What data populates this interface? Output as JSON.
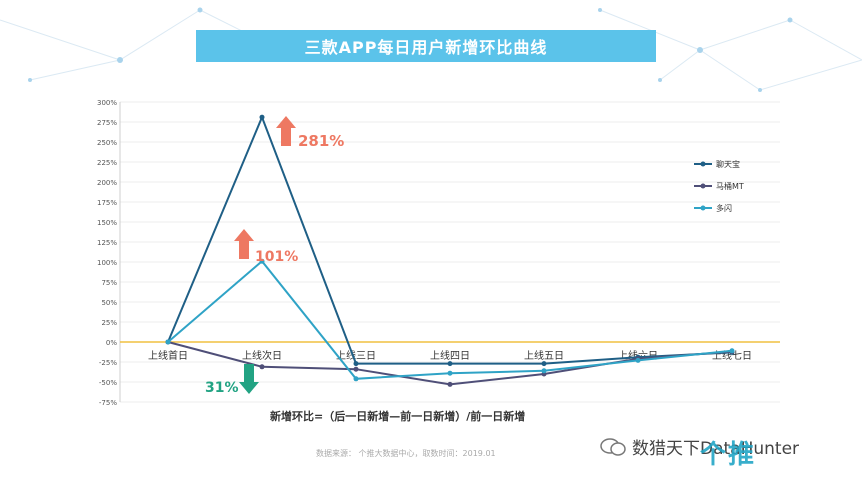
{
  "header": {
    "title": "三款APP每日用户新增环比曲线"
  },
  "footer": {
    "formula": "新增环比=（后一日新增—前一日新增）/前一日新增",
    "source": "数据来源：  个推大数据中心，取数时间：2019.01",
    "wechat": "数猎天下DataHunter",
    "brand": "个推"
  },
  "colors": {
    "title_bg": "#5bc3ea",
    "up_arrow": "#ee7862",
    "down_arrow": "#22a383",
    "zero_line": "#f0c040"
  },
  "annotations": [
    {
      "text": "281%",
      "direction": "up",
      "color": "#ee7862"
    },
    {
      "text": "101%",
      "direction": "up",
      "color": "#ee7862"
    },
    {
      "text": "31%",
      "direction": "down",
      "color": "#22a383"
    }
  ],
  "chart_data": {
    "type": "line",
    "categories": [
      "上线首日",
      "上线次日",
      "上线三日",
      "上线四日",
      "上线五日",
      "上线六日",
      "上线七日"
    ],
    "yticks": [
      "300%",
      "275%",
      "250%",
      "225%",
      "200%",
      "175%",
      "150%",
      "125%",
      "100%",
      "75%",
      "50%",
      "25%",
      "0%",
      "-25%",
      "-50%",
      "-75%"
    ],
    "ylim": [
      -75,
      300
    ],
    "series": [
      {
        "name": "聊天宝",
        "color": "#1f5f86",
        "values": [
          0,
          281,
          -27,
          -27,
          -27,
          -19,
          -13
        ]
      },
      {
        "name": "马桶MT",
        "color": "#4f4f78",
        "values": [
          0,
          -31,
          -34,
          -53,
          -40,
          -21,
          -12
        ]
      },
      {
        "name": "多闪",
        "color": "#2fa3c6",
        "values": [
          0,
          101,
          -46,
          -39,
          -36,
          -23,
          -11
        ]
      }
    ],
    "legend": "right",
    "grid": true
  }
}
